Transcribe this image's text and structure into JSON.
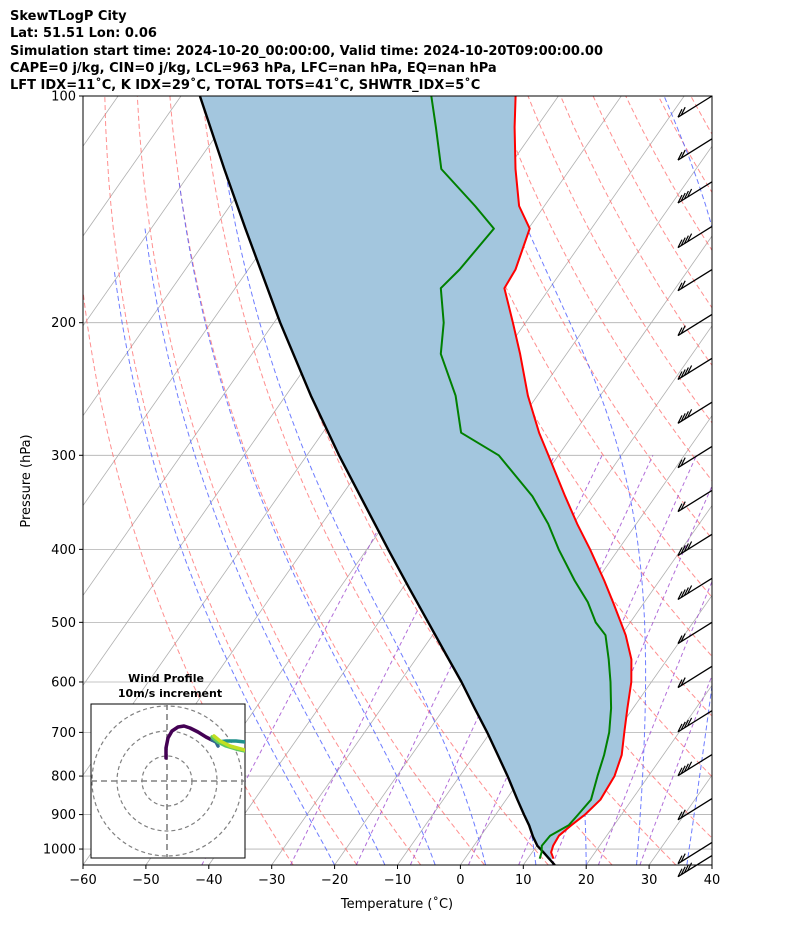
{
  "header": {
    "line1": "SkewTLogP City",
    "line2": "Lat: 51.51   Lon: 0.06",
    "line3": "Simulation start time: 2024-10-20_00:00:00, Valid time: 2024-10-20T09:00:00.00",
    "line4": "CAPE=0 j/kg, CIN=0 j/kg, LCL=963 hPa, LFC=nan hPa, EQ=nan hPa",
    "line5": "LFT IDX=11$^\\circ$C, K IDX=29$^\\circ$C, TOTAL TOTS=41$^\\circ$C, SHWTR_IDX=5$^\\circ$C"
  },
  "header_display": {
    "line5": "LFT IDX=11˚C, K IDX=29˚C, TOTAL TOTS=41˚C, SHWTR_IDX=5˚C"
  },
  "inset": {
    "title": "Wind Profile",
    "subtitle": "10m/s increment"
  },
  "chart_data": {
    "type": "line",
    "title": "SkewTLogP City",
    "xlabel": "Temperature ($^\\circ$C)",
    "xlabel_display": "Temperature (˚C)",
    "ylabel": "Pressure (hPa)",
    "xlim": [
      -60,
      40
    ],
    "ylim": [
      1050,
      100
    ],
    "y_scale": "log",
    "skew": "skew-T",
    "grid": true,
    "x_ticks": [
      -60,
      -50,
      -40,
      -30,
      -20,
      -10,
      0,
      10,
      20,
      30,
      40
    ],
    "y_ticks": [
      1000,
      900,
      800,
      700,
      600,
      500,
      400,
      300,
      200,
      100
    ],
    "colors": {
      "temperature": "#ff0000",
      "dewpoint": "#008000",
      "parcel": "#000000",
      "fill": "#a3c6de",
      "dry_adiabats": "#ff6a6a",
      "moist_adiabats": "#4a5cff",
      "mixing_ratio": "#9f4ad0",
      "isotherms": "#b0b0b0"
    },
    "series": [
      {
        "name": "Temperature",
        "pressure": [
          1030,
          1010,
          990,
          960,
          930,
          900,
          860,
          800,
          750,
          700,
          650,
          600,
          560,
          520,
          500,
          470,
          440,
          400,
          370,
          340,
          300,
          280,
          250,
          220,
          200,
          180,
          170,
          150,
          140,
          125,
          110,
          100
        ],
        "temperature": [
          14.1,
          13.0,
          12.6,
          12.4,
          13.2,
          14.2,
          15.0,
          14.6,
          13.4,
          11.3,
          9.1,
          6.8,
          4.3,
          0.7,
          -1.5,
          -5.0,
          -8.8,
          -14.5,
          -19.4,
          -24.4,
          -31.6,
          -35.6,
          -41.5,
          -47.4,
          -52.0,
          -57.2,
          -57.5,
          -59.8,
          -64.0,
          -68.7,
          -73.5,
          -76.8
        ]
      },
      {
        "name": "Dewpoint",
        "pressure": [
          1030,
          1010,
          990,
          960,
          930,
          900,
          860,
          800,
          750,
          700,
          650,
          600,
          560,
          520,
          500,
          470,
          440,
          400,
          370,
          340,
          300,
          280,
          250,
          220,
          200,
          180,
          170,
          150,
          140,
          125,
          110,
          100
        ],
        "temperature": [
          11.9,
          11.5,
          10.8,
          11.0,
          12.8,
          13.1,
          13.5,
          11.9,
          10.6,
          8.9,
          6.5,
          3.5,
          0.7,
          -2.5,
          -5.5,
          -9.0,
          -13.5,
          -19.5,
          -24.0,
          -29.6,
          -39.5,
          -48.0,
          -53.0,
          -60.0,
          -63.0,
          -67.3,
          -66.4,
          -65.5,
          -71.0,
          -80.5,
          -86.0,
          -90.2
        ]
      },
      {
        "name": "Parcel",
        "pressure": [
          1050,
          1030,
          1010,
          990,
          963,
          930,
          900,
          860,
          800,
          750,
          700,
          650,
          600,
          550,
          500,
          450,
          400,
          350,
          300,
          250,
          200,
          150,
          125,
          100
        ],
        "temperature": [
          15.0,
          13.4,
          11.8,
          10.1,
          8.4,
          6.5,
          4.5,
          1.8,
          -2.4,
          -6.3,
          -10.5,
          -15.2,
          -20.2,
          -25.9,
          -32.1,
          -39.0,
          -46.6,
          -55.1,
          -64.9,
          -76.0,
          -89.0,
          -105.0,
          -115.0,
          -127.0
        ]
      }
    ],
    "wind_barbs": {
      "pressure": [
        100,
        114,
        130,
        149,
        170,
        195,
        223,
        255,
        292,
        334,
        382,
        437,
        500,
        572,
        655,
        749,
        857,
        980,
        1020
      ]
    }
  }
}
